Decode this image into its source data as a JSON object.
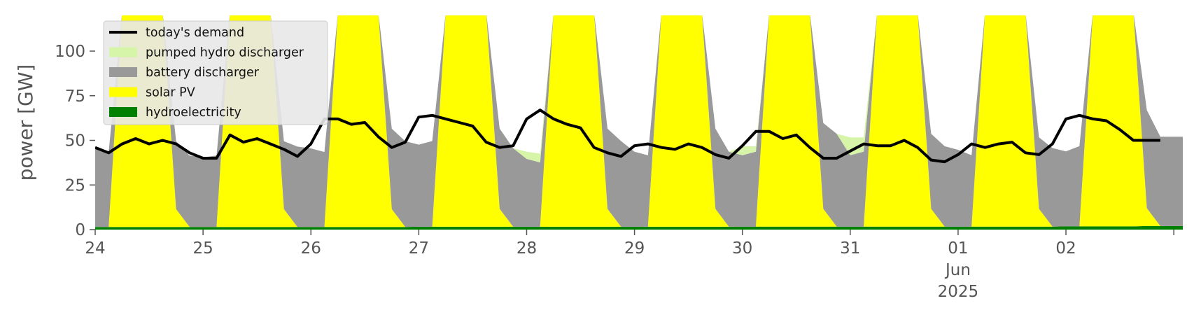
{
  "chart_data": {
    "type": "area",
    "title": "",
    "xlabel": "",
    "ylabel": "power [GW]",
    "ylim": [
      0,
      120
    ],
    "yticks": [
      0,
      25,
      50,
      75,
      100
    ],
    "x_start": "2025-05-24T00:00",
    "x_end": "2025-06-02T23:00",
    "x_step": "3h",
    "xtick_labels": [
      "24",
      "25",
      "26",
      "27",
      "28",
      "29",
      "30",
      "31",
      "01",
      "02"
    ],
    "xtick_month": "Jun",
    "xtick_year": "2025",
    "grid": false,
    "legend_position": "top-left",
    "colors": {
      "today's demand": "#000000",
      "pumped hydro discharger": "#d7f5a8",
      "battery discharger": "#999999",
      "solar PV": "#ffff00",
      "hydroelectricity": "#008000"
    },
    "legend": [
      "today's demand",
      "pumped hydro discharger",
      "battery discharger",
      "solar PV",
      "hydroelectricity"
    ],
    "series": [
      {
        "name": "hydroelectricity",
        "kind": "stack",
        "values": [
          1.5,
          1.5,
          1.5,
          1.5,
          1.5,
          1.5,
          1.5,
          1.5,
          1.5,
          1.5,
          1.5,
          1.5,
          1.5,
          1.5,
          1.5,
          1.5,
          1.5,
          1.5,
          1.5,
          1.5,
          1.5,
          1.5,
          1.5,
          1.5,
          1.6,
          1.6,
          1.6,
          1.6,
          1.6,
          1.6,
          1.6,
          1.6,
          1.6,
          1.6,
          1.6,
          1.6,
          1.6,
          1.6,
          1.6,
          1.6,
          1.6,
          1.6,
          1.6,
          1.6,
          1.6,
          1.6,
          1.6,
          1.6,
          1.7,
          1.7,
          1.7,
          1.7,
          1.7,
          1.7,
          1.7,
          1.7,
          1.7,
          1.7,
          1.7,
          1.7,
          1.7,
          1.7,
          1.7,
          1.7,
          1.7,
          1.7,
          1.7,
          1.7,
          1.7,
          1.7,
          1.7,
          1.7,
          1.8,
          1.8,
          1.8,
          1.8,
          1.8,
          1.8,
          2.0,
          2.0
        ]
      },
      {
        "name": "solar PV",
        "kind": "stack",
        "values": [
          0,
          0,
          120,
          120,
          120,
          120,
          10,
          0,
          0,
          0,
          120,
          120,
          120,
          120,
          10,
          0,
          0,
          0,
          120,
          120,
          120,
          120,
          10,
          0,
          0,
          0,
          120,
          120,
          120,
          120,
          10,
          0,
          0,
          0,
          120,
          120,
          120,
          120,
          10,
          0,
          0,
          0,
          120,
          120,
          120,
          120,
          10,
          0,
          0,
          0,
          120,
          120,
          120,
          120,
          10,
          0,
          0,
          0,
          120,
          120,
          120,
          120,
          10,
          0,
          0,
          0,
          120,
          120,
          120,
          120,
          10,
          0,
          0,
          0,
          120,
          120,
          120,
          120,
          10,
          0
        ]
      },
      {
        "name": "battery discharger",
        "kind": "stack",
        "values": [
          44,
          42,
          0,
          0,
          0,
          0,
          38,
          40,
          39,
          40,
          0,
          0,
          0,
          0,
          38,
          45,
          44,
          42,
          0,
          0,
          0,
          0,
          45,
          48,
          46,
          48,
          0,
          0,
          0,
          0,
          45,
          44,
          38,
          36,
          0,
          0,
          0,
          0,
          45,
          48,
          42,
          40,
          0,
          0,
          0,
          0,
          45,
          42,
          40,
          42,
          0,
          0,
          0,
          0,
          48,
          52,
          40,
          42,
          0,
          0,
          0,
          0,
          42,
          45,
          43,
          40,
          0,
          0,
          0,
          0,
          40,
          44,
          42,
          45,
          0,
          0,
          0,
          0,
          55,
          50
        ]
      },
      {
        "name": "pumped hydro discharger",
        "kind": "stack",
        "values": [
          0,
          0,
          0,
          0,
          0,
          0,
          0,
          0,
          0,
          0,
          0,
          0,
          0,
          0,
          0,
          0,
          0,
          0,
          0,
          0,
          0,
          0,
          0,
          0,
          0,
          0,
          0,
          0,
          0,
          0,
          0,
          0,
          4,
          5,
          0,
          0,
          0,
          0,
          0,
          0,
          0,
          0,
          0,
          0,
          0,
          0,
          0,
          0,
          5,
          3,
          0,
          0,
          0,
          0,
          0,
          0,
          10,
          8,
          0,
          0,
          0,
          0,
          0,
          0,
          0,
          0,
          0,
          0,
          0,
          0,
          0,
          0,
          0,
          0,
          0,
          0,
          0,
          0,
          0,
          0
        ]
      },
      {
        "name": "today's demand",
        "kind": "line",
        "values": [
          46,
          43,
          48,
          51,
          48,
          50,
          48,
          43,
          40,
          40,
          53,
          49,
          51,
          48,
          45,
          41,
          48,
          62,
          62,
          59,
          60,
          52,
          46,
          49,
          63,
          64,
          62,
          60,
          58,
          49,
          46,
          47,
          62,
          67,
          62,
          59,
          57,
          46,
          43,
          41,
          47,
          48,
          46,
          45,
          48,
          46,
          42,
          40,
          47,
          55,
          55,
          51,
          53,
          46,
          40,
          40,
          44,
          48,
          47,
          47,
          50,
          46,
          39,
          38,
          42,
          48,
          46,
          48,
          49,
          43,
          42,
          48,
          62,
          64,
          62,
          61,
          56,
          50,
          50,
          50
        ]
      }
    ]
  }
}
